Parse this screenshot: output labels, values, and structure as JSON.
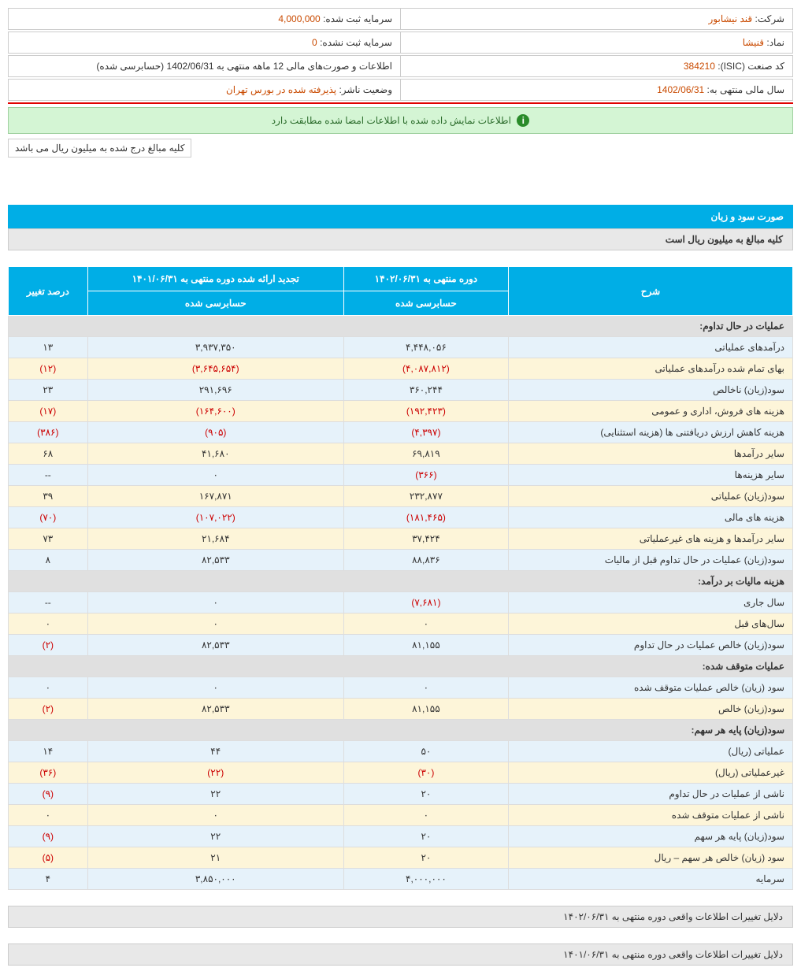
{
  "header": {
    "rows": [
      {
        "r_label": "شرکت:",
        "r_value": "قند نیشابور",
        "l_label": "سرمایه ثبت شده:",
        "l_value": "4,000,000"
      },
      {
        "r_label": "نماد:",
        "r_value": "قنیشا",
        "l_label": "سرمایه ثبت نشده:",
        "l_value": "0"
      },
      {
        "r_label": "کد صنعت (ISIC):",
        "r_value": "384210",
        "l_label": "",
        "l_value": "اطلاعات و صورت‌های مالی 12 ماهه منتهی به 1402/06/31 (حسابرسی شده)"
      },
      {
        "r_label": "سال مالی منتهی به:",
        "r_value": "1402/06/31",
        "l_label": "وضعیت ناشر:",
        "l_value": "پذیرفته شده در بورس تهران"
      }
    ]
  },
  "banner": "اطلاعات نمایش داده شده با اطلاعات امضا شده مطابقت دارد",
  "note": "کلیه مبالغ درج شده به میلیون ریال می باشد",
  "section_title": "صورت سود و زیان",
  "section_sub": "کلیه مبالغ به میلیون ریال است",
  "table": {
    "headers": {
      "desc": "شرح",
      "period1": "دوره منتهی به ۱۴۰۲/۰۶/۳۱",
      "period2": "تجدید ارائه شده دوره منتهی به ۱۴۰۱/۰۶/۳۱",
      "change": "درصد تغییر",
      "audited": "حسابرسی شده"
    },
    "rows": [
      {
        "type": "section",
        "desc": "عملیات در حال تداوم:"
      },
      {
        "type": "even",
        "desc": "درآمدهای عملیاتی",
        "v1": "۴,۴۴۸,۰۵۶",
        "v2": "۳,۹۳۷,۳۵۰",
        "chg": "۱۳"
      },
      {
        "type": "odd",
        "desc": "بهای تمام شده درآمدهای عملیاتی",
        "v1": "(۴,۰۸۷,۸۱۲)",
        "v1n": true,
        "v2": "(۳,۶۴۵,۶۵۴)",
        "v2n": true,
        "chg": "(۱۲)",
        "chgn": true
      },
      {
        "type": "even",
        "desc": "سود(زیان) ناخالص",
        "v1": "۳۶۰,۲۴۴",
        "v2": "۲۹۱,۶۹۶",
        "chg": "۲۳"
      },
      {
        "type": "odd",
        "desc": "هزینه های فروش، اداری و عمومی",
        "v1": "(۱۹۲,۴۲۳)",
        "v1n": true,
        "v2": "(۱۶۴,۶۰۰)",
        "v2n": true,
        "chg": "(۱۷)",
        "chgn": true
      },
      {
        "type": "even",
        "desc": "هزینه کاهش ارزش دریافتنی ها (هزینه استثنایی)",
        "v1": "(۴,۳۹۷)",
        "v1n": true,
        "v2": "(۹۰۵)",
        "v2n": true,
        "chg": "(۳۸۶)",
        "chgn": true
      },
      {
        "type": "odd",
        "desc": "سایر درآمدها",
        "v1": "۶۹,۸۱۹",
        "v2": "۴۱,۶۸۰",
        "chg": "۶۸"
      },
      {
        "type": "even",
        "desc": "سایر هزینه‌ها",
        "v1": "(۳۶۶)",
        "v1n": true,
        "v2": "۰",
        "chg": "--"
      },
      {
        "type": "odd",
        "desc": "سود(زیان) عملیاتی",
        "v1": "۲۳۲,۸۷۷",
        "v2": "۱۶۷,۸۷۱",
        "chg": "۳۹"
      },
      {
        "type": "even",
        "desc": "هزینه های مالی",
        "v1": "(۱۸۱,۴۶۵)",
        "v1n": true,
        "v2": "(۱۰۷,۰۲۲)",
        "v2n": true,
        "chg": "(۷۰)",
        "chgn": true
      },
      {
        "type": "odd",
        "desc": "سایر درآمدها و هزینه های غیرعملیاتی",
        "v1": "۳۷,۴۲۴",
        "v2": "۲۱,۶۸۴",
        "chg": "۷۳"
      },
      {
        "type": "even",
        "desc": "سود(زیان) عملیات در حال تداوم قبل از مالیات",
        "v1": "۸۸,۸۳۶",
        "v2": "۸۲,۵۳۳",
        "chg": "۸"
      },
      {
        "type": "section",
        "desc": "هزینه مالیات بر درآمد:"
      },
      {
        "type": "even",
        "desc": "سال جاری",
        "v1": "(۷,۶۸۱)",
        "v1n": true,
        "v2": "۰",
        "chg": "--"
      },
      {
        "type": "odd",
        "desc": "سال‌های قبل",
        "v1": "۰",
        "v2": "۰",
        "chg": "۰"
      },
      {
        "type": "even",
        "desc": "سود(زیان) خالص عملیات در حال تداوم",
        "v1": "۸۱,۱۵۵",
        "v2": "۸۲,۵۳۳",
        "chg": "(۲)",
        "chgn": true
      },
      {
        "type": "section",
        "desc": "عملیات متوقف شده:"
      },
      {
        "type": "even",
        "desc": "سود (زیان) خالص عملیات متوقف شده",
        "v1": "۰",
        "v2": "۰",
        "chg": "۰"
      },
      {
        "type": "odd",
        "desc": "سود(زیان) خالص",
        "v1": "۸۱,۱۵۵",
        "v2": "۸۲,۵۳۳",
        "chg": "(۲)",
        "chgn": true
      },
      {
        "type": "section",
        "desc": "سود(زیان) پایه هر سهم:"
      },
      {
        "type": "even",
        "desc": "عملیاتی (ریال)",
        "v1": "۵۰",
        "v2": "۴۴",
        "chg": "۱۴"
      },
      {
        "type": "odd",
        "desc": "غیرعملیاتی (ریال)",
        "v1": "(۳۰)",
        "v1n": true,
        "v2": "(۲۲)",
        "v2n": true,
        "chg": "(۳۶)",
        "chgn": true
      },
      {
        "type": "even",
        "desc": "ناشی از عملیات در حال تداوم",
        "v1": "۲۰",
        "v2": "۲۲",
        "chg": "(۹)",
        "chgn": true
      },
      {
        "type": "odd",
        "desc": "ناشی از عملیات متوقف شده",
        "v1": "۰",
        "v2": "۰",
        "chg": "۰"
      },
      {
        "type": "even",
        "desc": "سود(زیان) پایه هر سهم",
        "v1": "۲۰",
        "v2": "۲۲",
        "chg": "(۹)",
        "chgn": true
      },
      {
        "type": "odd",
        "desc": "سود (زیان) خالص هر سهم – ریال",
        "v1": "۲۰",
        "v2": "۲۱",
        "chg": "(۵)",
        "chgn": true
      },
      {
        "type": "even",
        "desc": "سرمایه",
        "v1": "۴,۰۰۰,۰۰۰",
        "v2": "۳,۸۵۰,۰۰۰",
        "chg": "۴"
      }
    ]
  },
  "footers": [
    "دلایل تغییرات اطلاعات واقعی دوره منتهی به ۱۴۰۲/۰۶/۳۱",
    "دلایل تغییرات اطلاعات واقعی دوره منتهی به ۱۴۰۱/۰۶/۳۱"
  ],
  "watermark": "@Codal360_ir"
}
